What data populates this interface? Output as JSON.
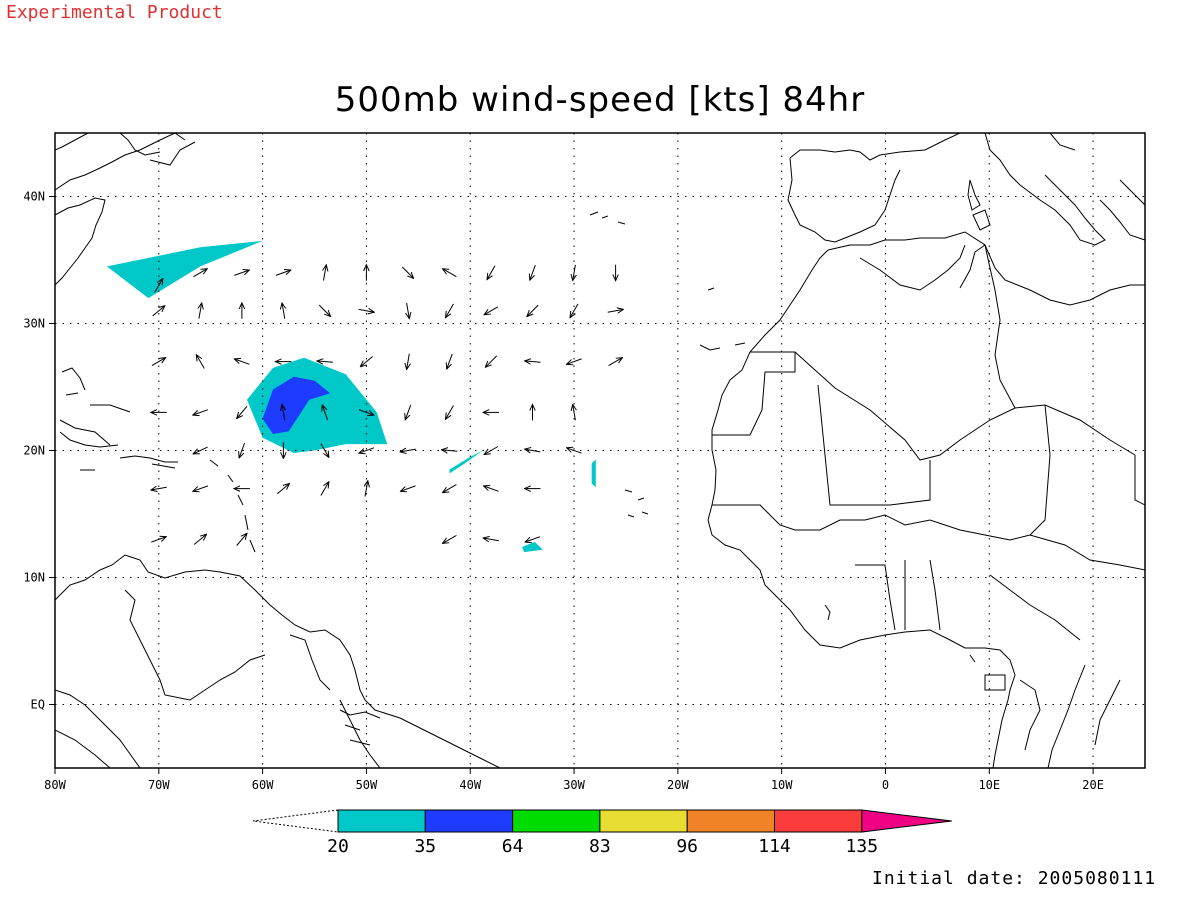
{
  "header": {
    "tag": "Experimental Product"
  },
  "title": "500mb wind-speed [kts] 84hr",
  "footer": {
    "initial_date": "Initial date: 2005080111"
  },
  "map": {
    "lon_range": [
      -80,
      25
    ],
    "lat_range": [
      -5,
      45
    ],
    "lon_ticks": [
      {
        "lon": -80,
        "label": "80W"
      },
      {
        "lon": -70,
        "label": "70W"
      },
      {
        "lon": -60,
        "label": "60W"
      },
      {
        "lon": -50,
        "label": "50W"
      },
      {
        "lon": -40,
        "label": "40W"
      },
      {
        "lon": -30,
        "label": "30W"
      },
      {
        "lon": -20,
        "label": "20W"
      },
      {
        "lon": -10,
        "label": "10W"
      },
      {
        "lon": 0,
        "label": "0"
      },
      {
        "lon": 10,
        "label": "10E"
      },
      {
        "lon": 20,
        "label": "20E"
      }
    ],
    "lat_ticks": [
      {
        "lat": 40,
        "label": "40N"
      },
      {
        "lat": 30,
        "label": "30N"
      },
      {
        "lat": 20,
        "label": "20N"
      },
      {
        "lat": 10,
        "label": "10N"
      },
      {
        "lat": 0,
        "label": "EQ"
      }
    ],
    "grid": "dotted",
    "coastline_color": "#000000"
  },
  "legend": {
    "bins": [
      {
        "label": "20",
        "color": "#00c8c8"
      },
      {
        "label": "35",
        "color": "#1e3cff"
      },
      {
        "label": "64",
        "color": "#00dc00"
      },
      {
        "label": "83",
        "color": "#e6dc32"
      },
      {
        "label": "96",
        "color": "#f08228"
      },
      {
        "label": "114",
        "color": "#fa3c3c"
      },
      {
        "label": "135",
        "color": "#f00082"
      }
    ],
    "under_color": "#ffffff"
  },
  "wind_shading": [
    {
      "name": "shade-band-north",
      "level": "20-35 kts",
      "color": "#00c8c8",
      "outline": [
        [
          -75,
          34.5
        ],
        [
          -66,
          36
        ],
        [
          -60,
          36.5
        ],
        [
          -66,
          34.5
        ],
        [
          -71,
          32
        ]
      ]
    },
    {
      "name": "shade-cyclone-outer",
      "level": "20-35 kts",
      "color": "#00c8c8",
      "outline": [
        [
          -61.5,
          24
        ],
        [
          -59,
          26.5
        ],
        [
          -56,
          27.3
        ],
        [
          -52,
          26
        ],
        [
          -49,
          23
        ],
        [
          -48,
          20.5
        ],
        [
          -52,
          20.5
        ],
        [
          -55,
          20
        ],
        [
          -57,
          19.8
        ],
        [
          -60,
          21
        ]
      ]
    },
    {
      "name": "shade-cyclone-core",
      "level": "35-64 kts",
      "color": "#1e3cff",
      "outline": [
        [
          -60,
          22.5
        ],
        [
          -59,
          24.8
        ],
        [
          -57,
          25.8
        ],
        [
          -55,
          25.5
        ],
        [
          -53.5,
          24.5
        ],
        [
          -55.5,
          24
        ],
        [
          -57.5,
          21.5
        ],
        [
          -59,
          21.3
        ]
      ]
    },
    {
      "name": "shade-patch-cv",
      "level": "20-35 kts",
      "color": "#00c8c8",
      "outline": [
        [
          -42,
          18.5
        ],
        [
          -40,
          19.5
        ],
        [
          -38.8,
          20
        ],
        [
          -40.5,
          19
        ],
        [
          -42,
          18.2
        ]
      ]
    },
    {
      "name": "shade-patch-south",
      "level": "20-35 kts",
      "color": "#00c8c8",
      "outline": [
        [
          -35,
          12.4
        ],
        [
          -33.8,
          12.8
        ],
        [
          -33,
          12.2
        ],
        [
          -34.8,
          12
        ]
      ]
    },
    {
      "name": "shade-patch-east",
      "level": "20-35 kts",
      "color": "#00c8c8",
      "outline": [
        [
          -28.3,
          19
        ],
        [
          -27.9,
          19.3
        ],
        [
          -27.9,
          17.1
        ],
        [
          -28.3,
          17.4
        ]
      ]
    }
  ],
  "wind_vectors": [
    [
      -70,
      33,
      60
    ],
    [
      -66,
      34,
      30
    ],
    [
      -62,
      34,
      20
    ],
    [
      -58,
      34,
      20
    ],
    [
      -54,
      34,
      80
    ],
    [
      -50,
      34,
      90
    ],
    [
      -46,
      34,
      -45
    ],
    [
      -42,
      34,
      150
    ],
    [
      -38,
      34,
      -120
    ],
    [
      -34,
      34,
      -110
    ],
    [
      -30,
      34,
      -100
    ],
    [
      -26,
      34,
      -90
    ],
    [
      -70,
      31,
      40
    ],
    [
      -66,
      31,
      80
    ],
    [
      -62,
      31,
      90
    ],
    [
      -58,
      31,
      100
    ],
    [
      -54,
      31,
      -45
    ],
    [
      -50,
      31,
      -10
    ],
    [
      -46,
      31,
      -80
    ],
    [
      -42,
      31,
      -120
    ],
    [
      -38,
      31,
      -150
    ],
    [
      -34,
      31,
      -135
    ],
    [
      -30,
      31,
      -120
    ],
    [
      -26,
      31,
      10
    ],
    [
      -70,
      27,
      30
    ],
    [
      -66,
      27,
      120
    ],
    [
      -62,
      27,
      160
    ],
    [
      -58,
      27,
      180
    ],
    [
      -54,
      27,
      175
    ],
    [
      -50,
      27,
      -140
    ],
    [
      -46,
      27,
      -100
    ],
    [
      -42,
      27,
      -110
    ],
    [
      -38,
      27,
      -135
    ],
    [
      -34,
      27,
      175
    ],
    [
      -30,
      27,
      -160
    ],
    [
      -26,
      27,
      30
    ],
    [
      -70,
      23,
      180
    ],
    [
      -66,
      23,
      200
    ],
    [
      -62,
      23,
      230
    ],
    [
      -58,
      23,
      100
    ],
    [
      -54,
      23,
      110
    ],
    [
      -50,
      23,
      -20
    ],
    [
      -46,
      23,
      -110
    ],
    [
      -42,
      23,
      -120
    ],
    [
      -38,
      23,
      180
    ],
    [
      -34,
      23,
      90
    ],
    [
      -30,
      23,
      100
    ],
    [
      -66,
      20,
      -155
    ],
    [
      -62,
      20,
      -110
    ],
    [
      -58,
      20,
      -90
    ],
    [
      -54,
      20,
      -60
    ],
    [
      -50,
      20,
      -160
    ],
    [
      -46,
      20,
      -170
    ],
    [
      -42,
      20,
      175
    ],
    [
      -38,
      20,
      -150
    ],
    [
      -34,
      20,
      170
    ],
    [
      -30,
      20,
      160
    ],
    [
      -70,
      17,
      190
    ],
    [
      -66,
      17,
      200
    ],
    [
      -62,
      17,
      180
    ],
    [
      -58,
      17,
      40
    ],
    [
      -54,
      17,
      60
    ],
    [
      -50,
      17,
      80
    ],
    [
      -46,
      17,
      -160
    ],
    [
      -42,
      17,
      -150
    ],
    [
      -38,
      17,
      160
    ],
    [
      -34,
      17,
      180
    ],
    [
      -70,
      13,
      20
    ],
    [
      -66,
      13,
      40
    ],
    [
      -62,
      13,
      50
    ],
    [
      -42,
      13,
      -150
    ],
    [
      -38,
      13,
      170
    ],
    [
      -34,
      13,
      -160
    ]
  ]
}
